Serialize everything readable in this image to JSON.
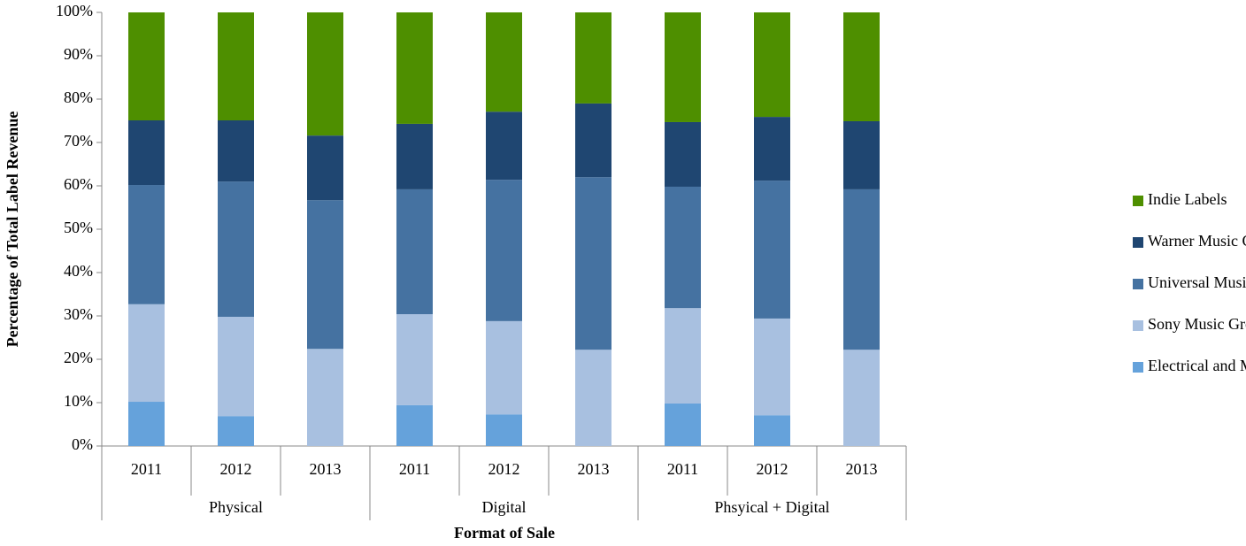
{
  "chart_data": {
    "type": "stacked_bar_100",
    "ylabel": "Percentage of Total Label Revenue",
    "xlabel": "Format of Sale",
    "groups": [
      {
        "name": "Physical",
        "categories": [
          "2011",
          "2012",
          "2013"
        ]
      },
      {
        "name": "Digital",
        "categories": [
          "2011",
          "2012",
          "2013"
        ]
      },
      {
        "name": "Phsyical + Digital",
        "categories": [
          "2011",
          "2012",
          "2013"
        ]
      }
    ],
    "series": [
      {
        "name": "Electrical and Musical Industries*",
        "color": "#65a2db",
        "values": [
          10.2,
          6.9,
          0,
          9.4,
          7.3,
          0,
          9.8,
          7.1,
          0
        ]
      },
      {
        "name": "Sony Music Group",
        "color": "#a8c0e0",
        "values": [
          22.5,
          22.9,
          22.4,
          21.0,
          21.5,
          22.2,
          22.0,
          22.3,
          22.2
        ]
      },
      {
        "name": "Universal Music Group",
        "color": "#4572a1",
        "values": [
          27.5,
          31.2,
          34.3,
          28.8,
          32.6,
          39.8,
          28.0,
          31.8,
          37.0
        ]
      },
      {
        "name": "Warner Music Group",
        "color": "#1f4671",
        "values": [
          14.9,
          14.1,
          14.9,
          15.1,
          15.7,
          17.0,
          14.9,
          14.7,
          15.7
        ]
      },
      {
        "name": "Indie Labels",
        "color": "#4e8f00",
        "values": [
          24.9,
          24.9,
          28.4,
          25.7,
          22.9,
          21.0,
          25.3,
          24.1,
          25.1
        ]
      }
    ],
    "ylim": [
      0,
      100
    ],
    "yticks": [
      {
        "value": 0,
        "label": "0%"
      },
      {
        "value": 10,
        "label": "10%"
      },
      {
        "value": 20,
        "label": "20%"
      },
      {
        "value": 30,
        "label": "30%"
      },
      {
        "value": 40,
        "label": "40%"
      },
      {
        "value": 50,
        "label": "50%"
      },
      {
        "value": 60,
        "label": "60%"
      },
      {
        "value": 70,
        "label": "70%"
      },
      {
        "value": 80,
        "label": "80%"
      },
      {
        "value": 90,
        "label": "90%"
      },
      {
        "value": 100,
        "label": "100%"
      }
    ],
    "grid": false,
    "legend": "right"
  }
}
